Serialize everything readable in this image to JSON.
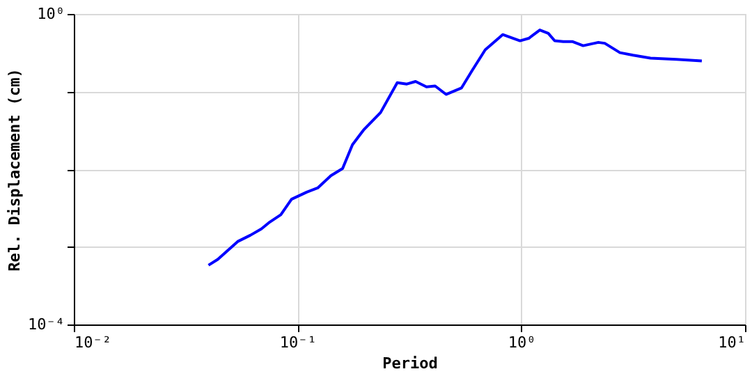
{
  "chart_data": {
    "type": "line",
    "xlabel": "Period",
    "ylabel": "Rel. Displacement (cm)",
    "log": "xy",
    "grid": true,
    "marker": "none",
    "line_style": "solid",
    "xlim": [
      0.01,
      10
    ],
    "ylim": [
      0.0001,
      1
    ],
    "xticks": [
      {
        "value": 0.01,
        "label": "10⁻²"
      },
      {
        "value": 0.1,
        "label": "10⁻¹"
      },
      {
        "value": 1,
        "label": "10⁰"
      },
      {
        "value": 10,
        "label": "10¹"
      }
    ],
    "yticks": [
      {
        "value": 0.0001,
        "label": "10⁻⁴"
      },
      {
        "value": 0.001,
        "label": null
      },
      {
        "value": 0.01,
        "label": null
      },
      {
        "value": 0.1,
        "label": null
      },
      {
        "value": 1,
        "label": "10⁰"
      }
    ],
    "x": [
      0.04,
      0.044,
      0.054,
      0.0615,
      0.0689,
      0.0752,
      0.0842,
      0.094,
      0.11,
      0.123,
      0.141,
      0.159,
      0.176,
      0.197,
      0.235,
      0.279,
      0.308,
      0.337,
      0.377,
      0.412,
      0.461,
      0.54,
      0.603,
      0.69,
      0.826,
      0.987,
      1.08,
      1.21,
      1.32,
      1.41,
      1.54,
      1.69,
      1.89,
      2.21,
      2.36,
      2.76,
      3.16,
      3.78,
      4.94,
      6.41
    ],
    "series": [
      {
        "color": "#0000ff",
        "values": [
          0.00058,
          0.00069,
          0.00117,
          0.00141,
          0.0017,
          0.00209,
          0.00259,
          0.0041,
          0.00507,
          0.00573,
          0.00826,
          0.0102,
          0.0207,
          0.0318,
          0.0537,
          0.13,
          0.125,
          0.135,
          0.115,
          0.118,
          0.092,
          0.111,
          0.187,
          0.345,
          0.542,
          0.451,
          0.485,
          0.621,
          0.562,
          0.451,
          0.441,
          0.441,
          0.39,
          0.43,
          0.419,
          0.317,
          0.294,
          0.27,
          0.26,
          0.248
        ]
      }
    ]
  }
}
